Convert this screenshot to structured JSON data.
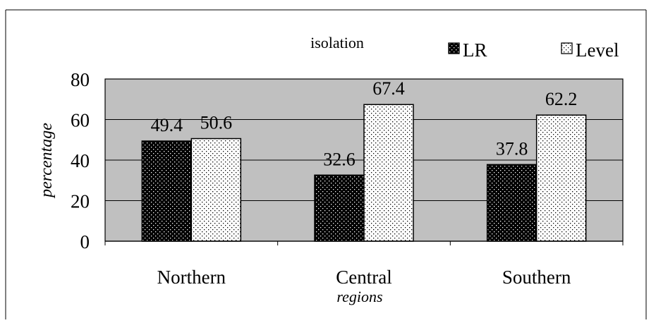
{
  "chart_data": {
    "type": "bar",
    "title": "isolation",
    "xlabel": "regions",
    "ylabel": "percentage",
    "categories": [
      "Northern",
      "Central",
      "Southern"
    ],
    "ylim": [
      0,
      80
    ],
    "yticks": [
      "0",
      "20",
      "40",
      "60",
      "80"
    ],
    "grid": true,
    "legend_position": "top-right",
    "series": [
      {
        "name": "LR",
        "values": [
          49.4,
          32.6,
          37.8
        ],
        "labels": [
          "49.4",
          "32.6",
          "37.8"
        ],
        "pattern": "dots-on-black"
      },
      {
        "name": "Level",
        "values": [
          50.6,
          67.4,
          62.2
        ],
        "labels": [
          "50.6",
          "67.4",
          "62.2"
        ],
        "pattern": "dots-on-white"
      }
    ],
    "colors": {
      "plot_background": "#c0c0c0",
      "frame": "#000000",
      "page_background": "#ffffff"
    }
  }
}
